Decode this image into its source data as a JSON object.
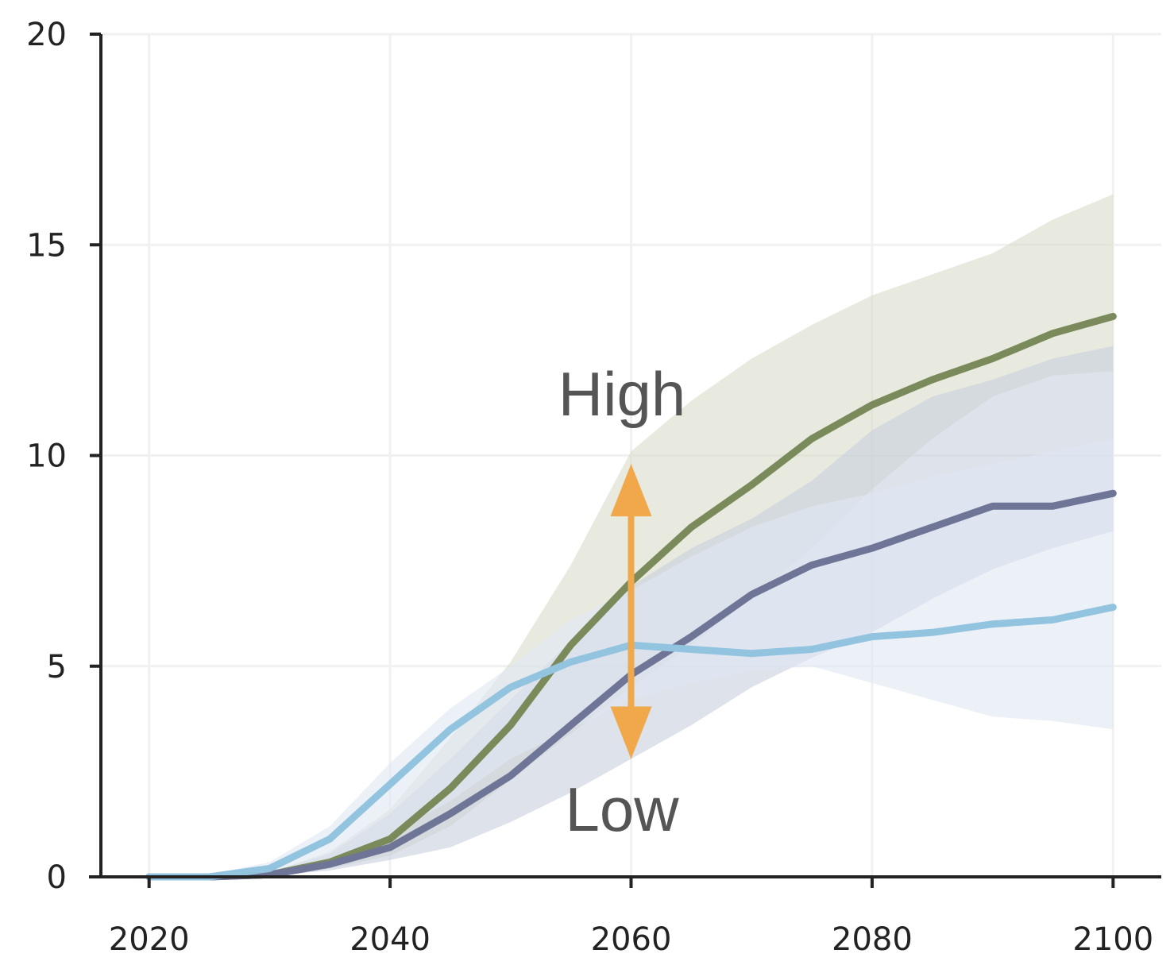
{
  "chart_data": {
    "type": "area",
    "x_ticks": [
      2020,
      2040,
      2060,
      2080,
      2100
    ],
    "y_ticks": [
      0,
      5,
      10,
      15,
      20
    ],
    "xlim": [
      2016,
      2104
    ],
    "ylim": [
      0,
      20
    ],
    "grid": true,
    "annotations": {
      "high": "High",
      "low": "Low",
      "arrow_x": 2060,
      "arrow_range": [
        2.8,
        9.8
      ],
      "arrow_color": "#f0a84a"
    },
    "series": [
      {
        "color": "#7a8a5a",
        "band_color": "#d8dccc",
        "x": [
          2020,
          2025,
          2030,
          2035,
          2040,
          2045,
          2050,
          2055,
          2060,
          2065,
          2070,
          2075,
          2080,
          2085,
          2090,
          2095,
          2100
        ],
        "values": [
          0,
          0,
          0.05,
          0.35,
          0.9,
          2.1,
          3.6,
          5.5,
          7.0,
          8.3,
          9.3,
          10.4,
          11.2,
          11.8,
          12.3,
          12.9,
          13.3
        ],
        "lower": [
          0,
          0,
          0.02,
          0.2,
          0.5,
          1.2,
          2.3,
          3.4,
          4.5,
          5.5,
          6.6,
          7.8,
          9.2,
          10.4,
          11.4,
          11.9,
          12.0
        ],
        "upper": [
          0,
          0.03,
          0.1,
          0.6,
          1.6,
          3.3,
          5.1,
          7.4,
          10.1,
          11.3,
          12.3,
          13.1,
          13.8,
          14.3,
          14.8,
          15.6,
          16.2
        ]
      },
      {
        "color": "#6f7596",
        "band_color": "#c8cfdd",
        "x": [
          2020,
          2025,
          2030,
          2035,
          2040,
          2045,
          2050,
          2055,
          2060,
          2065,
          2070,
          2075,
          2080,
          2085,
          2090,
          2095,
          2100
        ],
        "values": [
          0,
          0,
          0.05,
          0.3,
          0.7,
          1.5,
          2.4,
          3.6,
          4.8,
          5.7,
          6.7,
          7.4,
          7.8,
          8.3,
          8.8,
          8.8,
          9.1
        ],
        "lower": [
          0,
          0,
          0.02,
          0.15,
          0.4,
          0.7,
          1.3,
          2.0,
          2.8,
          3.6,
          4.5,
          5.2,
          5.8,
          6.6,
          7.3,
          7.8,
          8.2
        ],
        "upper": [
          0,
          0.02,
          0.1,
          0.55,
          1.5,
          2.8,
          4.2,
          5.6,
          6.9,
          7.8,
          8.5,
          9.4,
          10.6,
          11.4,
          11.8,
          12.3,
          12.6
        ]
      },
      {
        "color": "#93c4df",
        "band_color": "#dfe8f3",
        "x": [
          2020,
          2025,
          2030,
          2035,
          2040,
          2045,
          2050,
          2055,
          2060,
          2065,
          2070,
          2075,
          2080,
          2085,
          2090,
          2095,
          2100
        ],
        "values": [
          0,
          0,
          0.2,
          0.9,
          2.2,
          3.5,
          4.5,
          5.1,
          5.5,
          5.4,
          5.3,
          5.4,
          5.7,
          5.8,
          6.0,
          6.1,
          6.4
        ],
        "lower": [
          0,
          0,
          0.1,
          0.4,
          1.0,
          1.8,
          2.8,
          3.5,
          4.2,
          4.6,
          4.9,
          5.0,
          4.6,
          4.2,
          3.8,
          3.7,
          3.5
        ],
        "upper": [
          0,
          0.05,
          0.35,
          1.2,
          2.7,
          4.0,
          5.0,
          6.1,
          6.8,
          7.6,
          8.3,
          8.8,
          9.1,
          9.5,
          9.8,
          10.1,
          10.4
        ]
      }
    ]
  }
}
